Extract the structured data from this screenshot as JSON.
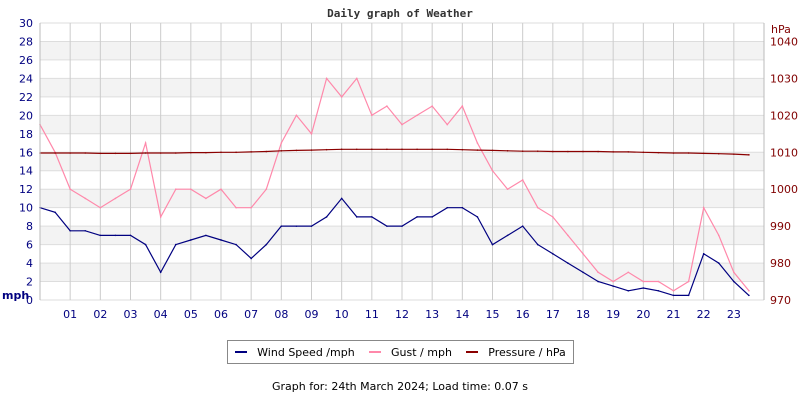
{
  "chart_data": {
    "type": "line",
    "title": "Daily graph of Weather",
    "ylabel_left": "mph",
    "ylabel_right": "hPa",
    "ylim_left": [
      0,
      30
    ],
    "ylim_right": [
      970,
      1045
    ],
    "xlim": [
      0,
      24
    ],
    "grid": true,
    "legend_position": "bottom",
    "x_ticks": [
      "01",
      "02",
      "03",
      "04",
      "05",
      "06",
      "07",
      "08",
      "09",
      "10",
      "11",
      "12",
      "13",
      "14",
      "15",
      "16",
      "17",
      "18",
      "19",
      "20",
      "21",
      "22",
      "23"
    ],
    "y_ticks_left": [
      "0",
      "2",
      "4",
      "6",
      "8",
      "10",
      "12",
      "14",
      "16",
      "18",
      "20",
      "22",
      "24",
      "26",
      "28",
      "30"
    ],
    "y_ticks_right": [
      "970",
      "980",
      "990",
      "1000",
      "1010",
      "1020",
      "1030",
      "1040"
    ],
    "x": [
      0,
      0.5,
      1,
      1.5,
      2,
      2.5,
      3,
      3.5,
      4,
      4.5,
      5,
      5.5,
      6,
      6.5,
      7,
      7.5,
      8,
      8.5,
      9,
      9.5,
      10,
      10.5,
      11,
      11.5,
      12,
      12.5,
      13,
      13.5,
      14,
      14.5,
      15,
      15.5,
      16,
      16.5,
      17,
      17.5,
      18,
      18.5,
      19,
      19.5,
      20,
      20.5,
      21,
      21.5,
      22,
      22.5,
      23,
      23.5
    ],
    "series": [
      {
        "name": "Wind Speed /mph",
        "axis": "left",
        "color": "#000080",
        "values": [
          10,
          9.5,
          7.5,
          7.5,
          7,
          7,
          7,
          6,
          3,
          6,
          6.5,
          7,
          6.5,
          6,
          4.5,
          6,
          8,
          8,
          8,
          9,
          11,
          9,
          9,
          8,
          8,
          9,
          9,
          10,
          10,
          9,
          6,
          7,
          8,
          6,
          5,
          4,
          3,
          2,
          1.5,
          1,
          1.3,
          1,
          0.5,
          0.5,
          5,
          4,
          2,
          0.5
        ]
      },
      {
        "name": "Gust / mph",
        "axis": "left",
        "color": "#ff88aa",
        "values": [
          19,
          16,
          12,
          11,
          10,
          11,
          12,
          17,
          9,
          12,
          12,
          11,
          12,
          10,
          10,
          12,
          17,
          20,
          18,
          24,
          22,
          24,
          20,
          21,
          19,
          20,
          21,
          19,
          21,
          17,
          14,
          12,
          13,
          10,
          9,
          7,
          5,
          3,
          2,
          3,
          2,
          2,
          1,
          2,
          10,
          7,
          3,
          1
        ]
      },
      {
        "name": "Pressure / hPa",
        "axis": "right",
        "color": "#8b0000",
        "values": [
          1009.8,
          1009.8,
          1009.8,
          1009.8,
          1009.7,
          1009.7,
          1009.7,
          1009.8,
          1009.8,
          1009.8,
          1009.9,
          1009.9,
          1010,
          1010,
          1010.1,
          1010.2,
          1010.4,
          1010.5,
          1010.6,
          1010.7,
          1010.8,
          1010.8,
          1010.8,
          1010.8,
          1010.8,
          1010.8,
          1010.8,
          1010.8,
          1010.7,
          1010.6,
          1010.5,
          1010.4,
          1010.3,
          1010.3,
          1010.2,
          1010.2,
          1010.2,
          1010.2,
          1010.1,
          1010.1,
          1010,
          1009.9,
          1009.8,
          1009.8,
          1009.7,
          1009.6,
          1009.5,
          1009.3
        ]
      }
    ]
  },
  "footer": "Graph for: 24th March 2024; Load time: 0.07 s"
}
